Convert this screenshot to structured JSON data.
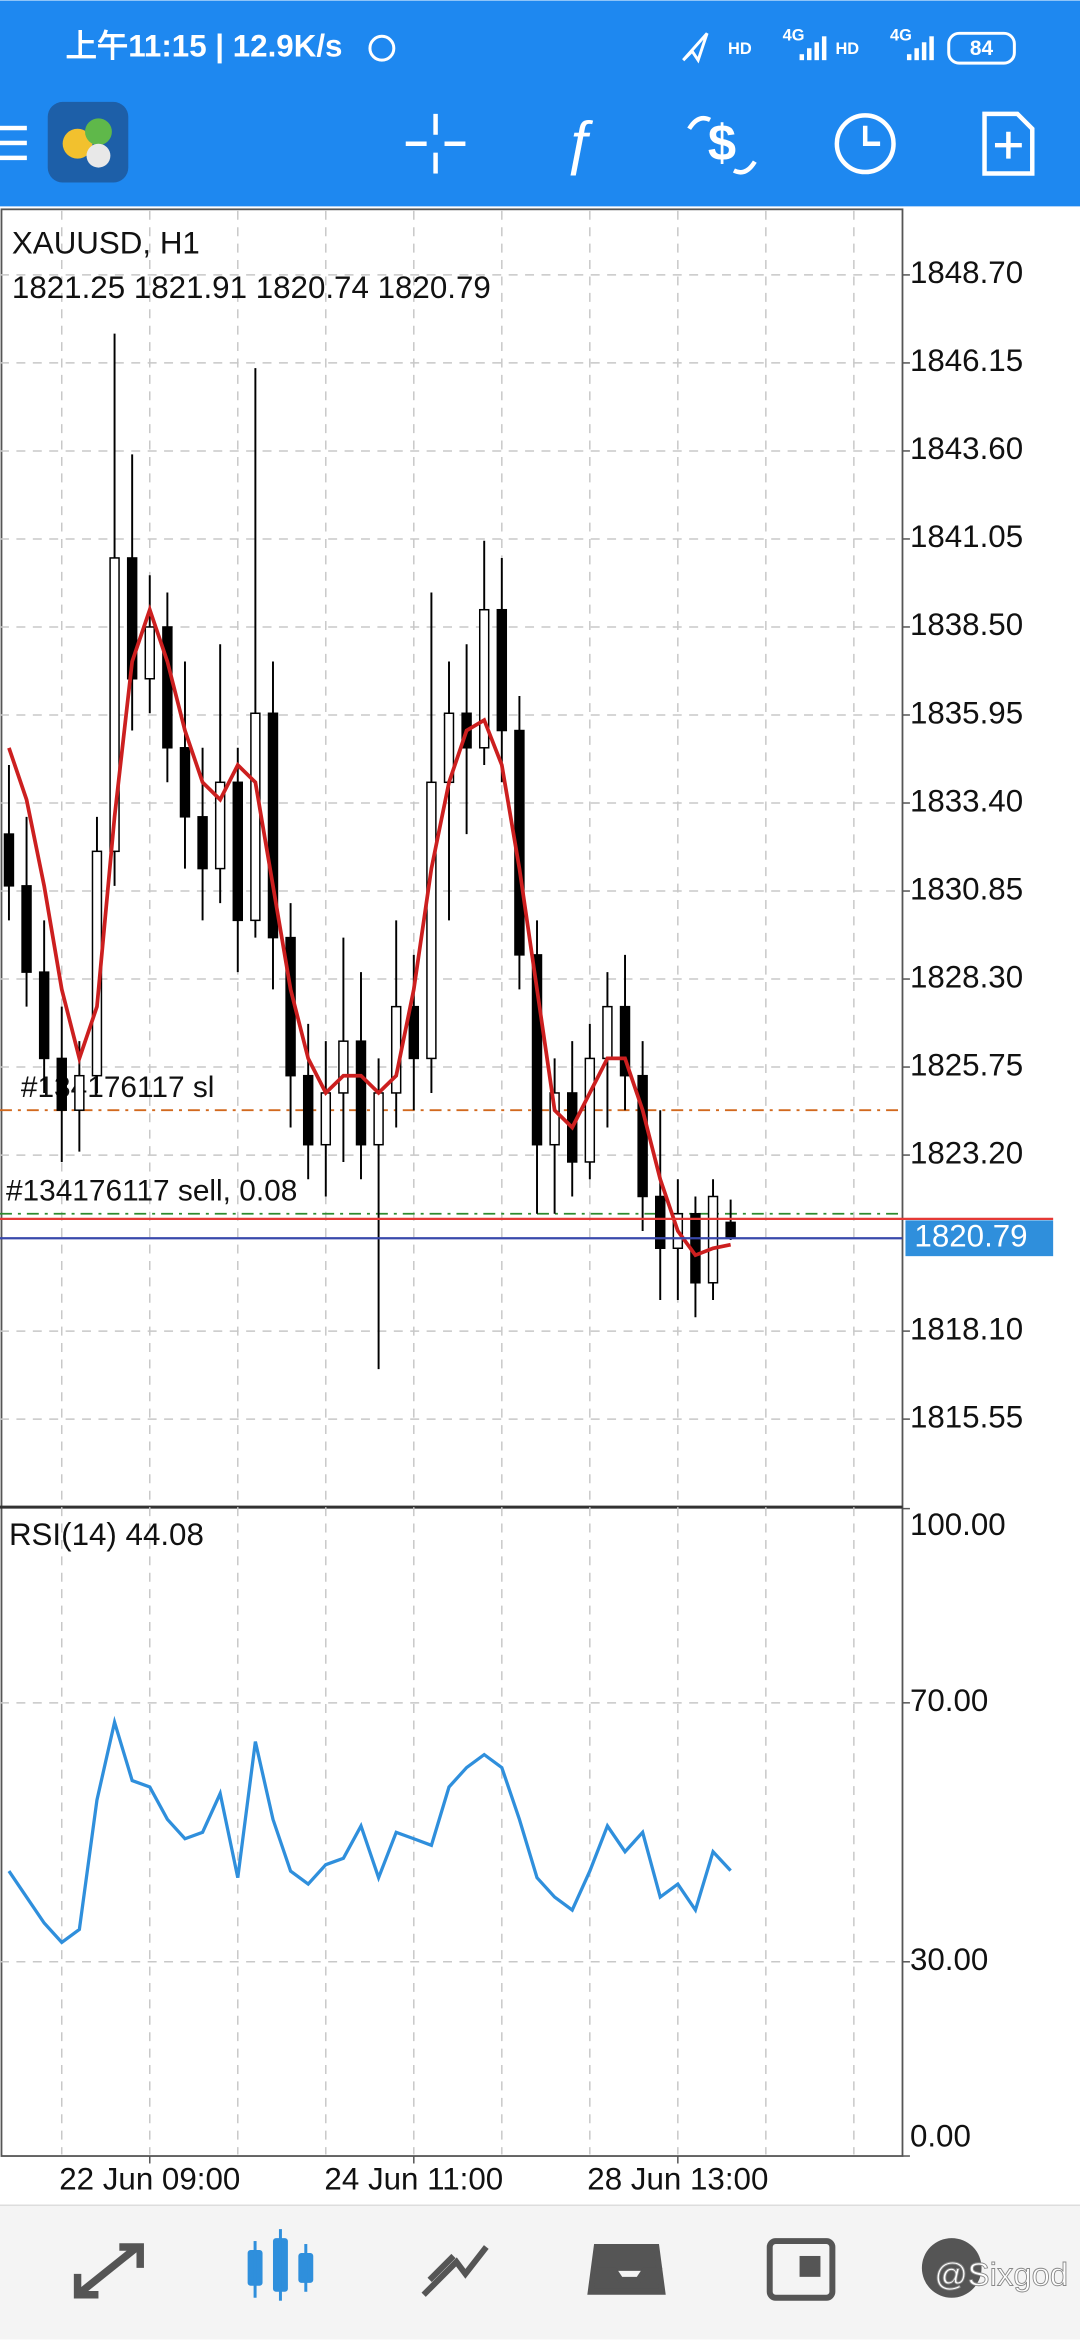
{
  "status_bar": {
    "time": "上午11:15 | 12.9K/s",
    "network": [
      "HD",
      "4G",
      "HD",
      "4G"
    ],
    "battery": "84"
  },
  "chart_data": [
    {
      "type": "candlestick",
      "title": "XAUUSD, H1",
      "categories": [
        null,
        null,
        null,
        null,
        null,
        null,
        null,
        null,
        "22 Jun 09:00",
        null,
        null,
        null,
        null,
        null,
        null,
        null,
        null,
        null,
        null,
        null,
        null,
        null,
        null,
        "24 Jun 11:00",
        null,
        null,
        null,
        null,
        null,
        null,
        null,
        null,
        null,
        null,
        null,
        null,
        null,
        null,
        "28 Jun 13:00",
        null,
        null,
        null
      ],
      "open": [
        1832.5,
        1831.0,
        1828.5,
        1826.0,
        1824.5,
        1825.5,
        1832.0,
        1840.5,
        1837.0,
        1838.5,
        1835.0,
        1833.0,
        1831.5,
        1834.0,
        1830.0,
        1836.0,
        1829.5,
        1825.5,
        1823.5,
        1825.0,
        1826.5,
        1823.5,
        1825.0,
        1827.5,
        1826.0,
        1834.0,
        1836.0,
        1835.0,
        1839.0,
        1835.5,
        1829.0,
        1823.5,
        1825.0,
        1823.0,
        1826.0,
        1827.5,
        1825.5,
        1822.0,
        1820.5,
        1821.5,
        1819.5,
        1821.25
      ],
      "high": [
        1834.5,
        1833.0,
        1830.0,
        1827.5,
        1826.5,
        1833.0,
        1847.0,
        1843.5,
        1840.0,
        1839.5,
        1837.5,
        1835.0,
        1838.0,
        1835.0,
        1846.0,
        1837.5,
        1830.5,
        1827.0,
        1826.5,
        1829.5,
        1828.5,
        1826.0,
        1830.0,
        1829.0,
        1839.5,
        1837.5,
        1838.0,
        1841.0,
        1840.5,
        1836.5,
        1830.0,
        1826.0,
        1826.5,
        1827.0,
        1828.5,
        1829.0,
        1826.5,
        1824.5,
        1822.5,
        1822.0,
        1822.5,
        1821.91
      ],
      "low": [
        1830.0,
        1827.5,
        1825.0,
        1823.0,
        1823.3,
        1825.0,
        1831.0,
        1835.5,
        1836.0,
        1834.0,
        1831.5,
        1830.0,
        1830.5,
        1828.5,
        1829.5,
        1828.0,
        1824.0,
        1822.5,
        1822.0,
        1823.0,
        1822.5,
        1817.0,
        1824.0,
        1824.5,
        1825.0,
        1830.0,
        1832.5,
        1834.5,
        1834.0,
        1828.0,
        1821.5,
        1821.5,
        1822.0,
        1822.5,
        1824.0,
        1824.5,
        1821.0,
        1819.0,
        1819.0,
        1818.5,
        1819.0,
        1820.74
      ],
      "close": [
        1831.0,
        1828.5,
        1826.0,
        1824.5,
        1825.5,
        1832.0,
        1840.5,
        1837.0,
        1838.5,
        1835.0,
        1833.0,
        1831.5,
        1834.0,
        1830.0,
        1836.0,
        1829.5,
        1825.5,
        1823.5,
        1825.0,
        1826.5,
        1823.5,
        1825.0,
        1827.5,
        1826.0,
        1834.0,
        1836.0,
        1835.0,
        1839.0,
        1835.5,
        1829.0,
        1823.5,
        1825.0,
        1823.0,
        1826.0,
        1827.5,
        1825.5,
        1822.0,
        1820.5,
        1821.5,
        1819.5,
        1822.0,
        1820.79
      ],
      "up_color": "#ffffff",
      "down_color": "#000000",
      "ma": {
        "color": "#cc1f1f",
        "values": [
          1835.0,
          1833.5,
          1831.0,
          1828.0,
          1826.0,
          1827.5,
          1833.0,
          1837.5,
          1839.0,
          1837.5,
          1835.5,
          1834.0,
          1833.5,
          1834.5,
          1834.0,
          1831.0,
          1828.0,
          1826.0,
          1825.0,
          1825.5,
          1825.5,
          1825.0,
          1825.5,
          1828.0,
          1831.5,
          1834.0,
          1835.5,
          1835.8,
          1834.5,
          1831.5,
          1828.0,
          1824.5,
          1824.0,
          1825.0,
          1826.0,
          1826.0,
          1824.5,
          1822.5,
          1821.0,
          1820.3,
          1820.5,
          1820.6
        ]
      },
      "levels": [
        {
          "label": "#134176117 sl",
          "value": 1824.5,
          "color": "#d2691e"
        },
        {
          "label": "#134176117 sell, 0.08",
          "value": 1821.5,
          "color": "#2e8b2e"
        }
      ],
      "bid_color": "#3949ab",
      "ask": 1821.35,
      "ask_color": "#e53935",
      "ylim": [
        1813.0,
        1850.6
      ],
      "yticks": [
        {
          "value": 1815.55,
          "label": "1815.55"
        },
        {
          "value": 1818.1,
          "label": "1818.10"
        },
        {
          "value": 1823.2,
          "label": "1823.20"
        },
        {
          "value": 1825.75,
          "label": "1825.75"
        },
        {
          "value": 1828.3,
          "label": "1828.30"
        },
        {
          "value": 1830.85,
          "label": "1830.85"
        },
        {
          "value": 1833.4,
          "label": "1833.40"
        },
        {
          "value": 1835.95,
          "label": "1835.95"
        },
        {
          "value": 1838.5,
          "label": "1838.50"
        },
        {
          "value": 1841.05,
          "label": "1841.05"
        },
        {
          "value": 1843.6,
          "label": "1843.60"
        },
        {
          "value": 1846.15,
          "label": "1846.15"
        },
        {
          "value": 1848.7,
          "label": "1848.70"
        }
      ],
      "grid": true
    },
    {
      "type": "line",
      "title": "RSI(14)",
      "series": [
        {
          "color": "#2f8fdc",
          "values": [
            44,
            40,
            36,
            33,
            35,
            55,
            67,
            58,
            57,
            52,
            49,
            50,
            56,
            43,
            64,
            52,
            44,
            42,
            45,
            46,
            51,
            43,
            50,
            49,
            48,
            57,
            60,
            62,
            60,
            52,
            43,
            40,
            38,
            44,
            51,
            47,
            50,
            40,
            42,
            38,
            47,
            44.08
          ]
        }
      ],
      "ylim": [
        0,
        100
      ],
      "yticks": [
        {
          "value": 0,
          "label": "0.00"
        },
        {
          "value": 30,
          "label": "30.00"
        },
        {
          "value": 70,
          "label": "70.00"
        },
        {
          "value": 100,
          "label": "100.00"
        }
      ],
      "grid": true
    }
  ],
  "watermark": "@Sixgod"
}
